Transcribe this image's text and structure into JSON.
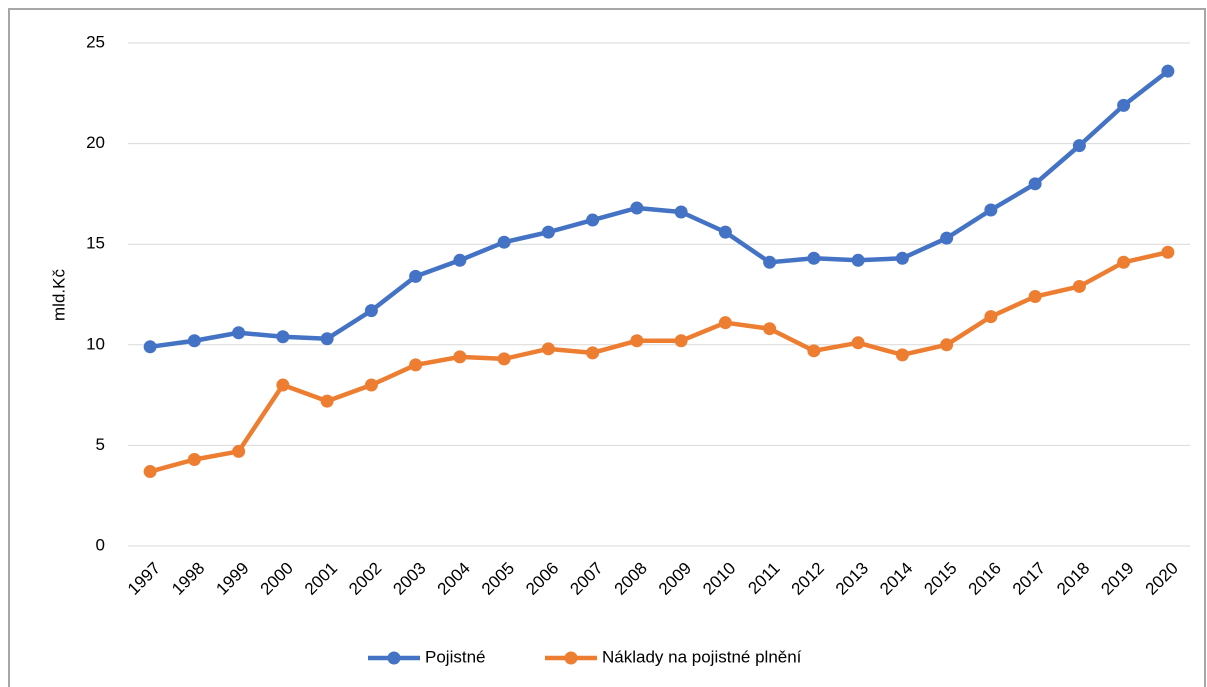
{
  "chart_data": {
    "type": "line",
    "y_label": "mld.Kč",
    "categories": [
      "1997",
      "1998",
      "1999",
      "2000",
      "2001",
      "2002",
      "2003",
      "2004",
      "2005",
      "2006",
      "2007",
      "2008",
      "2009",
      "2010",
      "2011",
      "2012",
      "2013",
      "2014",
      "2015",
      "2016",
      "2017",
      "2018",
      "2019",
      "2020"
    ],
    "series": [
      {
        "name": "Pojistné",
        "color": "#4472c4",
        "values": [
          9.9,
          10.2,
          10.6,
          10.4,
          10.3,
          11.7,
          13.4,
          14.2,
          15.1,
          15.6,
          16.2,
          16.8,
          16.6,
          15.6,
          14.1,
          14.3,
          14.2,
          14.3,
          15.3,
          16.7,
          18.0,
          19.9,
          21.9,
          23.6
        ]
      },
      {
        "name": "Náklady na pojistné plnění",
        "color": "#ed7d31",
        "values": [
          3.7,
          4.3,
          4.7,
          8.0,
          7.2,
          8.0,
          9.0,
          9.4,
          9.3,
          9.8,
          9.6,
          10.2,
          10.2,
          11.1,
          10.8,
          9.7,
          10.1,
          9.5,
          10.0,
          11.4,
          12.4,
          12.9,
          14.1,
          14.6
        ]
      }
    ],
    "ylim": [
      0,
      25
    ],
    "yticks": [
      0,
      5,
      10,
      15,
      20,
      25
    ],
    "grid": true,
    "legend": "bottom"
  }
}
